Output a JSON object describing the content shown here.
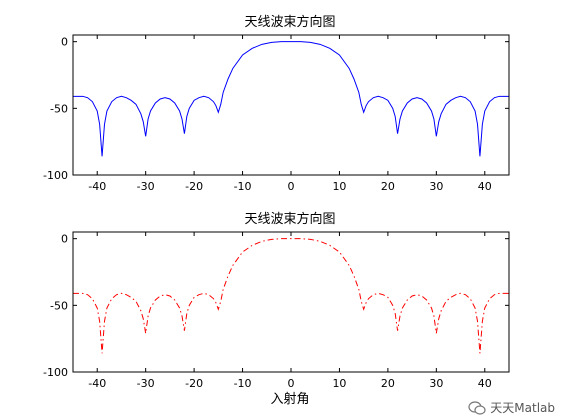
{
  "chart_data": [
    {
      "type": "line",
      "title": "天线波束方向图",
      "xlabel": "",
      "ylabel": "",
      "xlim": [
        -45,
        45
      ],
      "ylim": [
        -100,
        5
      ],
      "xticks": [
        -40,
        -30,
        -20,
        -10,
        0,
        10,
        20,
        30,
        40
      ],
      "yticks": [
        0,
        -50,
        -100
      ],
      "line_color": "#0000ff",
      "line_style": "solid",
      "series": [
        {
          "x": [
            -45,
            -43,
            -42,
            -41,
            -40,
            -39.5,
            -39,
            -38.5,
            -38,
            -37,
            -36,
            -35,
            -34,
            -33,
            -32,
            -31,
            -30.5,
            -30,
            -29.5,
            -29,
            -28,
            -27,
            -26,
            -25,
            -24,
            -23,
            -22.5,
            -22,
            -21.5,
            -21,
            -20,
            -19,
            -18,
            -17,
            -16,
            -15.5,
            -15,
            -14.5,
            -14,
            -13,
            -12,
            -10,
            -8,
            -6,
            -4,
            -2,
            0,
            2,
            4,
            6,
            8,
            10,
            12,
            13,
            14,
            14.5,
            15,
            15.5,
            16,
            17,
            18,
            19,
            20,
            21,
            21.5,
            22,
            22.5,
            23,
            24,
            25,
            26,
            27,
            28,
            29,
            29.5,
            30,
            30.5,
            31,
            32,
            33,
            34,
            35,
            36,
            37,
            38,
            38.5,
            39,
            39.5,
            40,
            41,
            42,
            43,
            45
          ],
          "y": [
            -41,
            -41,
            -42,
            -45,
            -52,
            -62,
            -86,
            -62,
            -52,
            -45,
            -42,
            -41,
            -42,
            -44,
            -47,
            -54,
            -60,
            -71,
            -58,
            -52,
            -46,
            -43,
            -42,
            -43,
            -46,
            -52,
            -58,
            -69,
            -56,
            -50,
            -44,
            -42,
            -41,
            -42,
            -45,
            -48,
            -53,
            -47,
            -38,
            -28,
            -20,
            -10,
            -5,
            -2,
            -0.5,
            0,
            0,
            0,
            -0.5,
            -2,
            -5,
            -10,
            -20,
            -28,
            -38,
            -47,
            -53,
            -48,
            -45,
            -42,
            -41,
            -42,
            -44,
            -50,
            -56,
            -69,
            -58,
            -52,
            -46,
            -43,
            -42,
            -43,
            -46,
            -52,
            -58,
            -71,
            -60,
            -54,
            -47,
            -44,
            -42,
            -41,
            -42,
            -45,
            -52,
            -62,
            -86,
            -62,
            -52,
            -45,
            -42,
            -41,
            -41
          ]
        }
      ]
    },
    {
      "type": "line",
      "title": "天线波束方向图",
      "xlabel": "入射角",
      "ylabel": "",
      "xlim": [
        -45,
        45
      ],
      "ylim": [
        -100,
        5
      ],
      "xticks": [
        -40,
        -30,
        -20,
        -10,
        0,
        10,
        20,
        30,
        40
      ],
      "yticks": [
        0,
        -50,
        -100
      ],
      "line_color": "#ff0000",
      "line_style": "dash-dot",
      "series": [
        {
          "x": [
            -45,
            -43,
            -42,
            -41,
            -40,
            -39.5,
            -39,
            -38.5,
            -38,
            -37,
            -36,
            -35,
            -34,
            -33,
            -32,
            -31,
            -30.5,
            -30,
            -29.5,
            -29,
            -28,
            -27,
            -26,
            -25,
            -24,
            -23,
            -22.5,
            -22,
            -21.5,
            -21,
            -20,
            -19,
            -18,
            -17,
            -16,
            -15.5,
            -15,
            -14.5,
            -14,
            -13,
            -12,
            -10,
            -8,
            -6,
            -4,
            -2,
            0,
            2,
            4,
            6,
            8,
            10,
            12,
            13,
            14,
            14.5,
            15,
            15.5,
            16,
            17,
            18,
            19,
            20,
            21,
            21.5,
            22,
            22.5,
            23,
            24,
            25,
            26,
            27,
            28,
            29,
            29.5,
            30,
            30.5,
            31,
            32,
            33,
            34,
            35,
            36,
            37,
            38,
            38.5,
            39,
            39.5,
            40,
            41,
            42,
            43,
            45
          ],
          "y": [
            -41,
            -41,
            -42,
            -45,
            -52,
            -62,
            -86,
            -62,
            -52,
            -45,
            -42,
            -41,
            -42,
            -44,
            -47,
            -54,
            -60,
            -71,
            -58,
            -52,
            -46,
            -43,
            -42,
            -43,
            -46,
            -52,
            -58,
            -69,
            -56,
            -50,
            -44,
            -42,
            -41,
            -42,
            -45,
            -48,
            -53,
            -47,
            -38,
            -28,
            -20,
            -10,
            -5,
            -2,
            -0.5,
            0,
            0,
            0,
            -0.5,
            -2,
            -5,
            -10,
            -20,
            -28,
            -38,
            -47,
            -53,
            -48,
            -45,
            -42,
            -41,
            -42,
            -44,
            -50,
            -56,
            -69,
            -58,
            -52,
            -46,
            -43,
            -42,
            -43,
            -46,
            -52,
            -58,
            -71,
            -60,
            -54,
            -47,
            -44,
            -42,
            -41,
            -42,
            -45,
            -52,
            -62,
            -86,
            -62,
            -52,
            -45,
            -42,
            -41,
            -41
          ]
        }
      ]
    }
  ],
  "watermark": {
    "text": "天天Matlab",
    "icon": "wechat-icon"
  }
}
